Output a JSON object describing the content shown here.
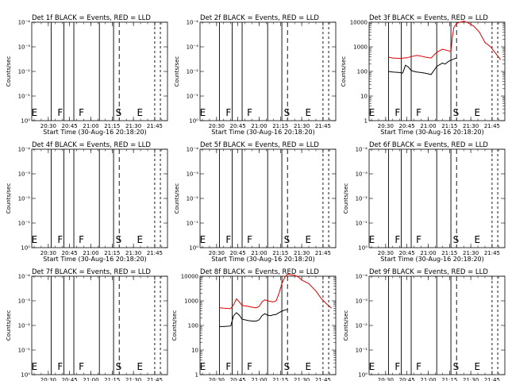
{
  "figure": {
    "title_text": "BLACK = Events, RED = LLD",
    "x_label": "Start Time (30-Aug-16 20:18:20)",
    "y_label": "Counts/sec",
    "x_ticks": [
      "20:30",
      "20:45",
      "21:00",
      "21:15",
      "21:30",
      "21:45"
    ],
    "x_tick_minutes": [
      30,
      45,
      60,
      75,
      90,
      105
    ],
    "x_range_minutes": [
      18.33,
      114
    ],
    "mark_labels": [
      "E",
      "F",
      "F",
      "S",
      "E"
    ],
    "mark_minutes": [
      18.7,
      37,
      52,
      78,
      93
    ],
    "solid_line_minutes": [
      32,
      41,
      48,
      66,
      76
    ],
    "dashed_line_minutes": [
      80
    ],
    "dotted_line_minutes": [
      105,
      109
    ],
    "colors": {
      "events": "#000000",
      "lld": "#dd0000"
    },
    "grid": false
  },
  "chart_data": [
    {
      "type": "line",
      "title": "Det 1f",
      "scale": "low",
      "ylim": [
        1,
        0.0001
      ],
      "yticks": [
        "10⁻⁴",
        "10⁻³",
        "10⁻²",
        "10⁻¹",
        "10⁰"
      ],
      "series": []
    },
    {
      "type": "line",
      "title": "Det 2f",
      "scale": "low",
      "ylim": [
        1,
        0.0001
      ],
      "yticks": [
        "10⁻⁴",
        "10⁻³",
        "10⁻²",
        "10⁻¹",
        "10⁰"
      ],
      "series": []
    },
    {
      "type": "line",
      "title": "Det 3f",
      "scale": "log",
      "ylim": [
        1,
        10000
      ],
      "yticks": [
        "10000",
        "1000",
        "100",
        "10",
        "1"
      ],
      "series": [
        {
          "color": "red",
          "x": [
            32,
            35,
            40,
            45,
            48,
            52,
            55,
            58,
            62,
            66,
            70,
            74,
            76,
            77,
            78,
            80,
            85,
            88,
            92,
            96,
            100,
            104,
            108,
            111
          ],
          "y": [
            380,
            350,
            340,
            360,
            400,
            450,
            420,
            380,
            350,
            600,
            800,
            700,
            650,
            2500,
            6000,
            9000,
            11000,
            9500,
            7000,
            4000,
            1500,
            1000,
            500,
            300
          ]
        },
        {
          "color": "black",
          "x": [
            32,
            35,
            40,
            42,
            44,
            46,
            48,
            50,
            52,
            55,
            58,
            60,
            62,
            66,
            70,
            72,
            74,
            76,
            77,
            78,
            80
          ],
          "y": [
            100,
            95,
            90,
            85,
            180,
            150,
            110,
            100,
            95,
            90,
            85,
            80,
            75,
            160,
            220,
            200,
            250,
            290,
            300,
            320,
            350
          ]
        }
      ]
    },
    {
      "type": "line",
      "title": "Det 4f",
      "scale": "low",
      "ylim": [
        1,
        0.0001
      ],
      "yticks": [
        "10⁻⁴",
        "10⁻³",
        "10⁻²",
        "10⁻¹",
        "10⁰"
      ],
      "series": []
    },
    {
      "type": "line",
      "title": "Det 5f",
      "scale": "low",
      "ylim": [
        1,
        0.0001
      ],
      "yticks": [
        "10⁻⁴",
        "10⁻³",
        "10⁻²",
        "10⁻¹",
        "10⁰"
      ],
      "series": []
    },
    {
      "type": "line",
      "title": "Det 6f",
      "scale": "low",
      "ylim": [
        1,
        0.0001
      ],
      "yticks": [
        "10⁻⁴",
        "10⁻³",
        "10⁻²",
        "10⁻¹",
        "10⁰"
      ],
      "series": []
    },
    {
      "type": "line",
      "title": "Det 7f",
      "scale": "low",
      "ylim": [
        1,
        0.0001
      ],
      "yticks": [
        "10⁻⁴",
        "10⁻³",
        "10⁻²",
        "10⁻¹",
        "10⁰"
      ],
      "series": []
    },
    {
      "type": "line",
      "title": "Det 8f",
      "scale": "log",
      "ylim": [
        1,
        10000
      ],
      "yticks": [
        "10000",
        "1000",
        "100",
        "10",
        "1"
      ],
      "series": [
        {
          "color": "red",
          "x": [
            32,
            35,
            40,
            42,
            44,
            46,
            48,
            52,
            55,
            58,
            60,
            62,
            64,
            66,
            68,
            70,
            72,
            74,
            76,
            78,
            80,
            85,
            88,
            90,
            95,
            100,
            104,
            108,
            111
          ],
          "y": [
            520,
            500,
            480,
            700,
            1200,
            900,
            650,
            600,
            550,
            520,
            600,
            900,
            1100,
            1000,
            950,
            900,
            1000,
            2000,
            5000,
            9000,
            12000,
            11000,
            9000,
            7000,
            5000,
            2500,
            1200,
            700,
            500
          ]
        },
        {
          "color": "black",
          "x": [
            32,
            35,
            40,
            42,
            44,
            46,
            48,
            52,
            55,
            58,
            60,
            62,
            64,
            66,
            68,
            70,
            72,
            74,
            76,
            78,
            80
          ],
          "y": [
            90,
            90,
            95,
            250,
            330,
            260,
            180,
            160,
            150,
            150,
            170,
            250,
            300,
            260,
            250,
            270,
            280,
            330,
            380,
            420,
            450
          ]
        }
      ]
    },
    {
      "type": "line",
      "title": "Det 9f",
      "scale": "low",
      "ylim": [
        1,
        0.0001
      ],
      "yticks": [
        "10⁻⁴",
        "10⁻³",
        "10⁻²",
        "10⁻¹",
        "10⁰"
      ],
      "series": []
    }
  ]
}
